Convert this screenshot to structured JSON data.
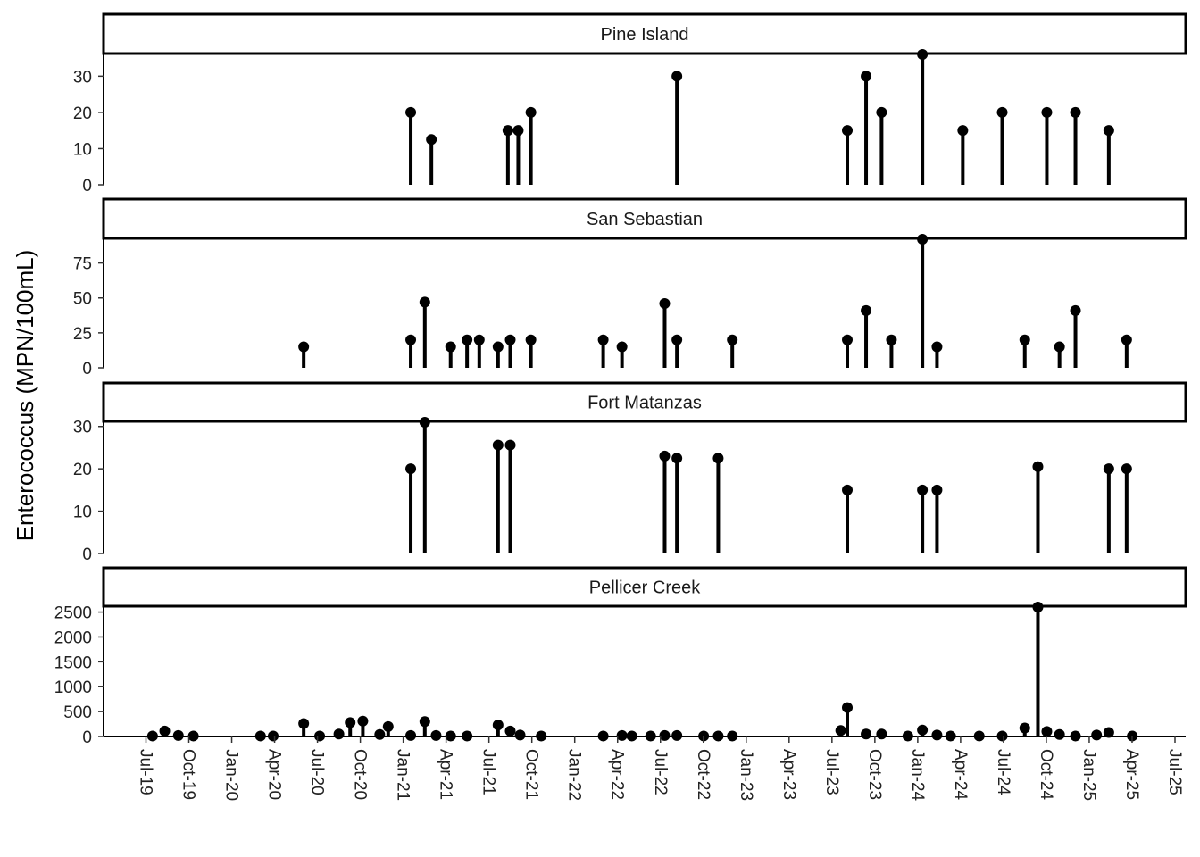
{
  "chart_data": {
    "type": "lollipop",
    "ylabel": "Enterococcus (MPN/100mL)",
    "x_ticks": [
      "Jul-19",
      "Oct-19",
      "Jan-20",
      "Apr-20",
      "Jul-20",
      "Oct-20",
      "Jan-21",
      "Apr-21",
      "Jul-21",
      "Oct-21",
      "Jan-22",
      "Apr-22",
      "Jul-22",
      "Oct-22",
      "Jan-23",
      "Apr-23",
      "Jul-23",
      "Oct-23",
      "Jan-24",
      "Apr-24",
      "Jul-24",
      "Oct-24",
      "Jan-25",
      "Apr-25",
      "Jul-25"
    ],
    "panels": [
      {
        "name": "Pine Island",
        "ylim": [
          0,
          36
        ],
        "yticks": [
          "0",
          "10",
          "20",
          "30"
        ],
        "points": [
          {
            "x": "2021-01-15",
            "y": 20
          },
          {
            "x": "2021-02-28",
            "y": 12.5
          },
          {
            "x": "2021-08-10",
            "y": 15
          },
          {
            "x": "2021-09-01",
            "y": 15
          },
          {
            "x": "2021-09-28",
            "y": 20
          },
          {
            "x": "2022-08-05",
            "y": 30
          },
          {
            "x": "2023-08-03",
            "y": 15
          },
          {
            "x": "2023-09-12",
            "y": 30
          },
          {
            "x": "2023-10-15",
            "y": 20
          },
          {
            "x": "2024-01-10",
            "y": 36
          },
          {
            "x": "2024-04-05",
            "y": 15
          },
          {
            "x": "2024-06-28",
            "y": 20
          },
          {
            "x": "2024-10-01",
            "y": 20
          },
          {
            "x": "2024-12-01",
            "y": 20
          },
          {
            "x": "2025-02-10",
            "y": 15
          }
        ]
      },
      {
        "name": "San Sebastian",
        "ylim": [
          0,
          92
        ],
        "yticks": [
          "0",
          "25",
          "50",
          "75"
        ],
        "points": [
          {
            "x": "2020-06-01",
            "y": 15
          },
          {
            "x": "2021-01-15",
            "y": 20
          },
          {
            "x": "2021-02-14",
            "y": 47
          },
          {
            "x": "2021-04-10",
            "y": 15
          },
          {
            "x": "2021-05-15",
            "y": 20
          },
          {
            "x": "2021-06-10",
            "y": 20
          },
          {
            "x": "2021-07-20",
            "y": 15
          },
          {
            "x": "2021-08-15",
            "y": 20
          },
          {
            "x": "2021-09-28",
            "y": 20
          },
          {
            "x": "2022-03-01",
            "y": 20
          },
          {
            "x": "2022-04-10",
            "y": 15
          },
          {
            "x": "2022-07-10",
            "y": 46
          },
          {
            "x": "2022-08-05",
            "y": 20
          },
          {
            "x": "2022-12-01",
            "y": 20
          },
          {
            "x": "2023-08-03",
            "y": 20
          },
          {
            "x": "2023-09-12",
            "y": 41
          },
          {
            "x": "2023-11-05",
            "y": 20
          },
          {
            "x": "2024-01-10",
            "y": 92
          },
          {
            "x": "2024-02-10",
            "y": 15
          },
          {
            "x": "2024-08-15",
            "y": 20
          },
          {
            "x": "2024-10-28",
            "y": 15
          },
          {
            "x": "2024-12-01",
            "y": 41
          },
          {
            "x": "2025-03-20",
            "y": 20
          }
        ]
      },
      {
        "name": "Fort Matanzas",
        "ylim": [
          0,
          31
        ],
        "yticks": [
          "0",
          "10",
          "20",
          "30"
        ],
        "points": [
          {
            "x": "2021-01-15",
            "y": 20
          },
          {
            "x": "2021-02-14",
            "y": 31
          },
          {
            "x": "2021-07-20",
            "y": 25.6
          },
          {
            "x": "2021-08-15",
            "y": 25.6
          },
          {
            "x": "2022-07-10",
            "y": 23
          },
          {
            "x": "2022-08-05",
            "y": 22.5
          },
          {
            "x": "2022-11-01",
            "y": 22.5
          },
          {
            "x": "2023-08-03",
            "y": 15
          },
          {
            "x": "2024-01-10",
            "y": 15
          },
          {
            "x": "2024-02-10",
            "y": 15
          },
          {
            "x": "2024-09-12",
            "y": 20.5
          },
          {
            "x": "2025-02-10",
            "y": 20
          },
          {
            "x": "2025-03-20",
            "y": 20
          }
        ]
      },
      {
        "name": "Pellicer Creek",
        "ylim": [
          0,
          2600
        ],
        "yticks": [
          "0",
          "500",
          "1000",
          "1500",
          "2000",
          "2500"
        ],
        "points": [
          {
            "x": "2019-07-15",
            "y": 10
          },
          {
            "x": "2019-08-10",
            "y": 110
          },
          {
            "x": "2019-09-08",
            "y": 20
          },
          {
            "x": "2019-10-10",
            "y": 10
          },
          {
            "x": "2020-03-01",
            "y": 10
          },
          {
            "x": "2020-03-28",
            "y": 10
          },
          {
            "x": "2020-06-01",
            "y": 260
          },
          {
            "x": "2020-07-05",
            "y": 10
          },
          {
            "x": "2020-08-15",
            "y": 50
          },
          {
            "x": "2020-09-08",
            "y": 280
          },
          {
            "x": "2020-10-05",
            "y": 310
          },
          {
            "x": "2020-11-10",
            "y": 40
          },
          {
            "x": "2020-11-28",
            "y": 200
          },
          {
            "x": "2021-01-15",
            "y": 20
          },
          {
            "x": "2021-02-14",
            "y": 300
          },
          {
            "x": "2021-03-10",
            "y": 20
          },
          {
            "x": "2021-04-10",
            "y": 10
          },
          {
            "x": "2021-05-15",
            "y": 10
          },
          {
            "x": "2021-07-20",
            "y": 230
          },
          {
            "x": "2021-08-15",
            "y": 110
          },
          {
            "x": "2021-09-05",
            "y": 30
          },
          {
            "x": "2021-10-20",
            "y": 10
          },
          {
            "x": "2022-03-01",
            "y": 10
          },
          {
            "x": "2022-04-10",
            "y": 20
          },
          {
            "x": "2022-05-01",
            "y": 10
          },
          {
            "x": "2022-06-10",
            "y": 10
          },
          {
            "x": "2022-07-10",
            "y": 20
          },
          {
            "x": "2022-08-05",
            "y": 20
          },
          {
            "x": "2022-10-01",
            "y": 10
          },
          {
            "x": "2022-11-01",
            "y": 10
          },
          {
            "x": "2022-12-01",
            "y": 10
          },
          {
            "x": "2023-07-20",
            "y": 120
          },
          {
            "x": "2023-08-03",
            "y": 580
          },
          {
            "x": "2023-09-12",
            "y": 50
          },
          {
            "x": "2023-10-15",
            "y": 50
          },
          {
            "x": "2023-12-10",
            "y": 10
          },
          {
            "x": "2024-01-10",
            "y": 130
          },
          {
            "x": "2024-02-10",
            "y": 30
          },
          {
            "x": "2024-03-10",
            "y": 10
          },
          {
            "x": "2024-05-10",
            "y": 10
          },
          {
            "x": "2024-06-28",
            "y": 10
          },
          {
            "x": "2024-08-15",
            "y": 170
          },
          {
            "x": "2024-09-12",
            "y": 2600
          },
          {
            "x": "2024-10-01",
            "y": 100
          },
          {
            "x": "2024-10-28",
            "y": 40
          },
          {
            "x": "2024-12-01",
            "y": 10
          },
          {
            "x": "2025-01-15",
            "y": 30
          },
          {
            "x": "2025-02-10",
            "y": 80
          },
          {
            "x": "2025-04-01",
            "y": 10
          }
        ]
      }
    ]
  }
}
